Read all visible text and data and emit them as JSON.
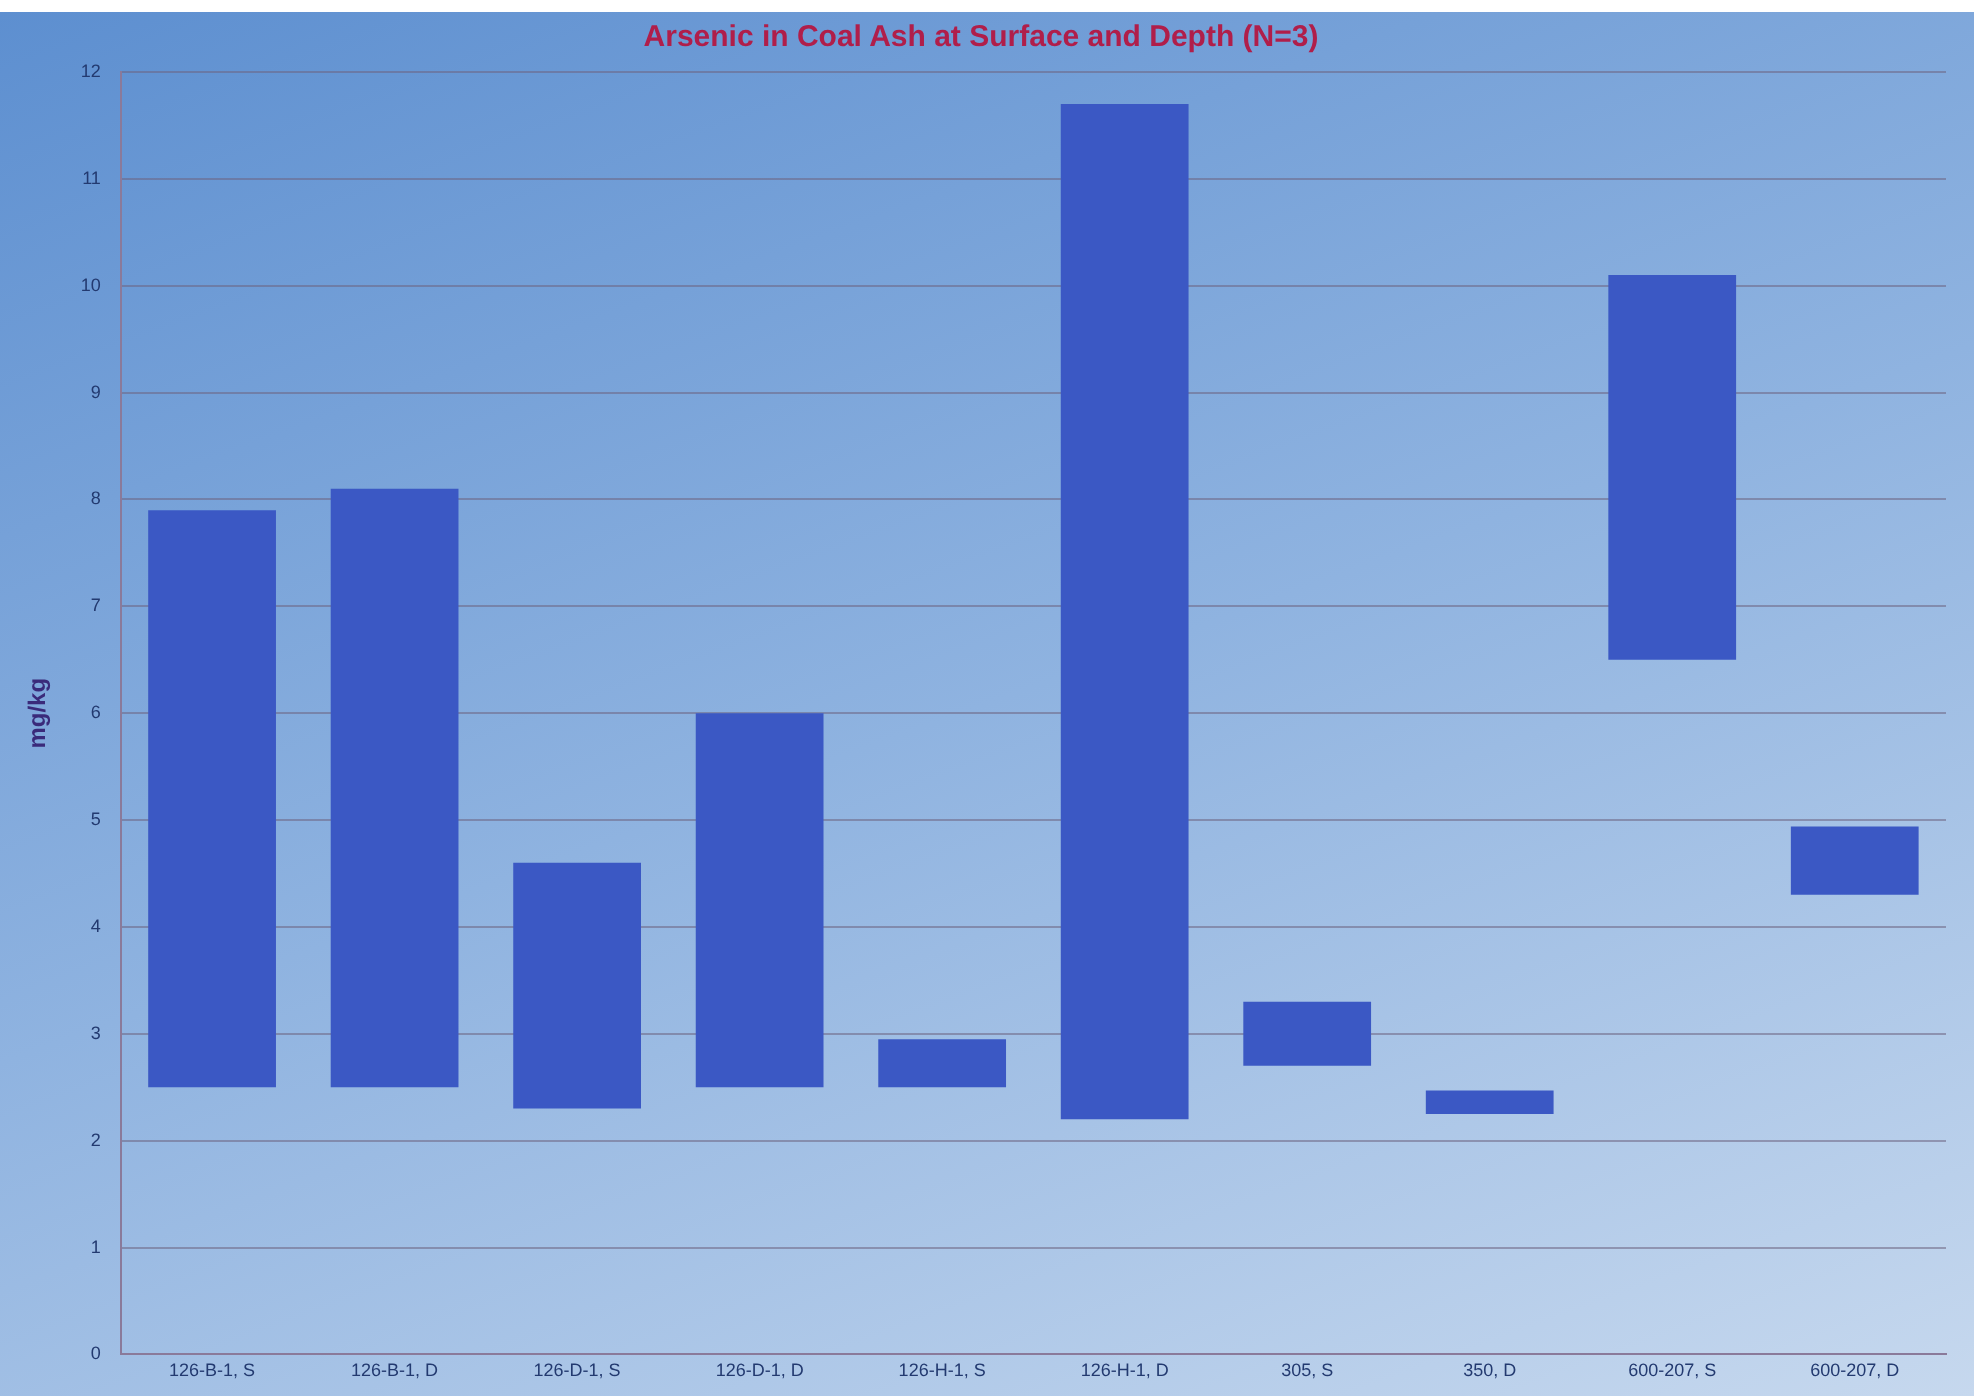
{
  "chart_data": {
    "type": "bar",
    "title": "Arsenic in Coal Ash at Surface and Depth (N=3)",
    "ylabel": "mg/kg",
    "categories": [
      "126-B-1, S",
      "126-B-1, D",
      "126-D-1, S",
      "126-D-1, D",
      "126-H-1, S",
      "126-H-1, D",
      "305, S",
      "350, D",
      "600-207, S",
      "600-207, D"
    ],
    "base": [
      2.5,
      2.5,
      2.3,
      2.5,
      2.5,
      2.2,
      2.7,
      2.25,
      6.5,
      4.3
    ],
    "values": [
      5.4,
      5.6,
      2.3,
      3.5,
      0.45,
      9.5,
      0.6,
      0.22,
      3.6,
      0.64
    ],
    "color": "#3b58c4",
    "ylim": [
      0,
      12
    ],
    "yticks": [
      0,
      1,
      2,
      3,
      4,
      5,
      6,
      7,
      8,
      9,
      10,
      11,
      12
    ],
    "grid": true,
    "legend": false
  }
}
